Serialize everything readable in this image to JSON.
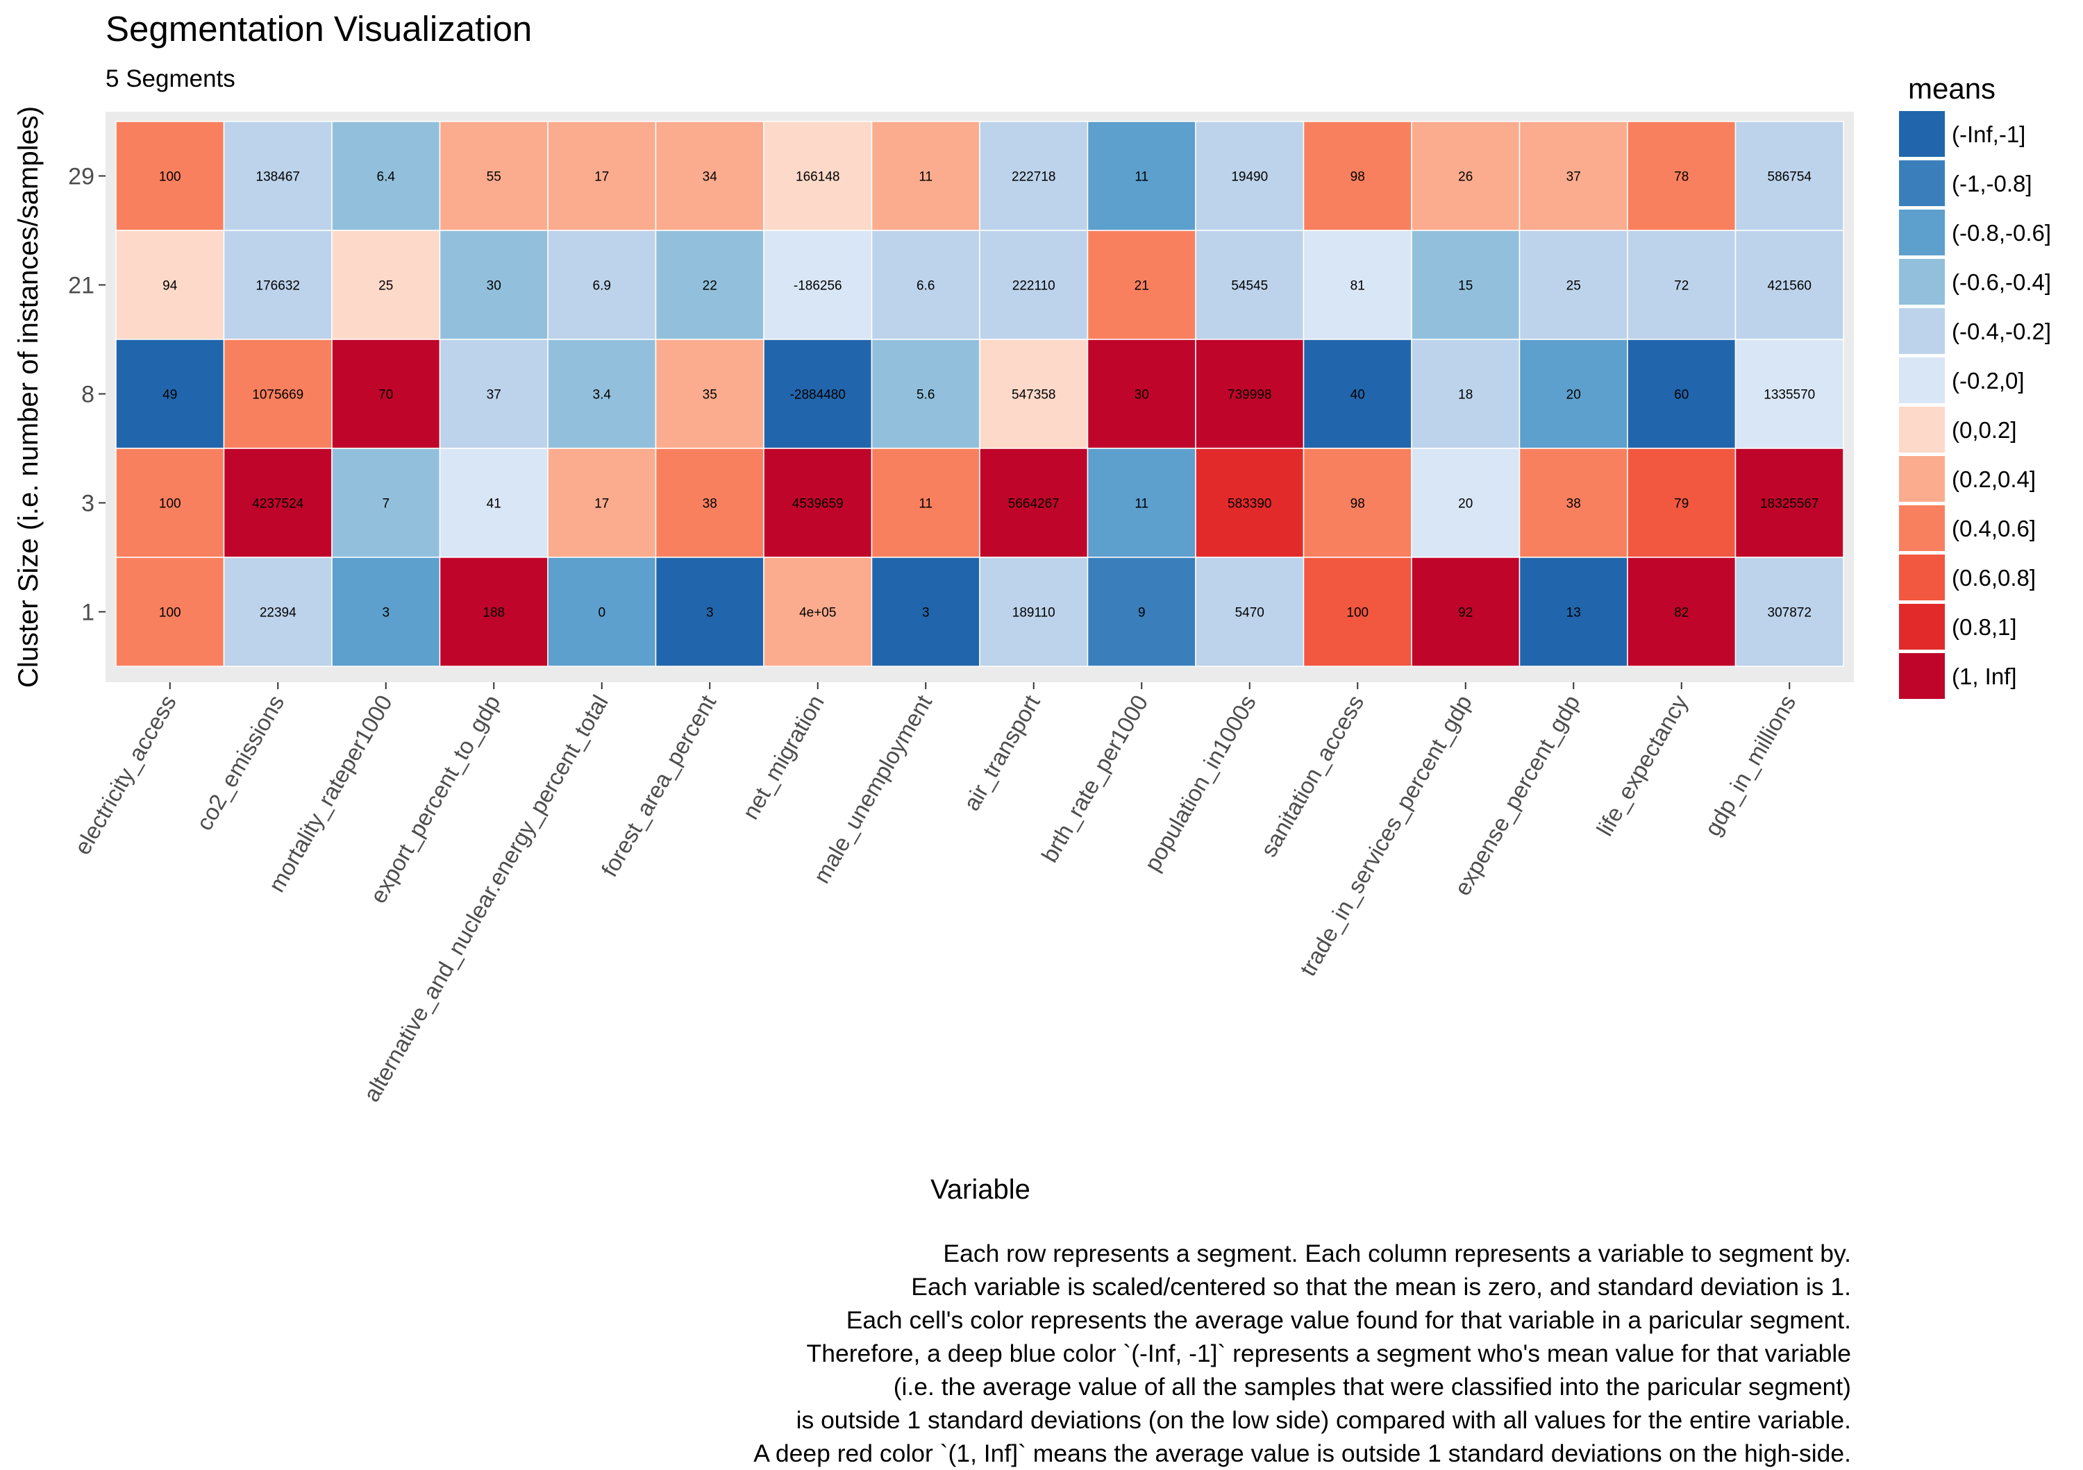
{
  "chart_data": {
    "type": "heatmap",
    "title": "Segmentation Visualization",
    "subtitle": "5 Segments",
    "xlabel": "Variable",
    "ylabel": "Cluster Size (i.e. number of instances/samples)",
    "legend_title": "means",
    "legend_position": "right",
    "grid": true,
    "categories": [
      "electricity_access",
      "co2_emissions",
      "mortality_rateper1000",
      "export_percent_to_gdp",
      "alternative_and_nuclear.energy_percent_total",
      "forest_area_percent",
      "net_migration",
      "male_unemployment",
      "air_transport",
      "brth_rate_per1000",
      "population_in1000s",
      "sanitation_access",
      "trade_in_services_percent_gdp",
      "expense_percent_gdp",
      "life_expectancy",
      "gdp_in_millions"
    ],
    "rows": [
      "29",
      "21",
      "8",
      "3",
      "1"
    ],
    "legend": [
      {
        "label": "(-Inf,-1]",
        "color": "#2166ac"
      },
      {
        "label": "(-1,-0.8]",
        "color": "#3a7fbc"
      },
      {
        "label": "(-0.8,-0.6]",
        "color": "#5d9fcd"
      },
      {
        "label": "(-0.6,-0.4]",
        "color": "#92c0dc"
      },
      {
        "label": "(-0.4,-0.2]",
        "color": "#bdd3eb"
      },
      {
        "label": "(-0.2,0]",
        "color": "#d9e6f5"
      },
      {
        "label": "(0,0.2]",
        "color": "#fcd9c9"
      },
      {
        "label": "(0.2,0.4]",
        "color": "#fbac8e"
      },
      {
        "label": "(0.4,0.6]",
        "color": "#f9805f"
      },
      {
        "label": "(0.6,0.8]",
        "color": "#f25840"
      },
      {
        "label": "(0.8,1]",
        "color": "#e32a2b"
      },
      {
        "label": "(1, Inf]",
        "color": "#c0052a"
      }
    ],
    "values": [
      [
        "100",
        "138467",
        "6.4",
        "55",
        "17",
        "34",
        "166148",
        "11",
        "222718",
        "11",
        "19490",
        "98",
        "26",
        "37",
        "78",
        "586754"
      ],
      [
        "94",
        "176632",
        "25",
        "30",
        "6.9",
        "22",
        "-186256",
        "6.6",
        "222110",
        "21",
        "54545",
        "81",
        "15",
        "25",
        "72",
        "421560"
      ],
      [
        "49",
        "1075669",
        "70",
        "37",
        "3.4",
        "35",
        "-2884480",
        "5.6",
        "547358",
        "30",
        "739998",
        "40",
        "18",
        "20",
        "60",
        "1335570"
      ],
      [
        "100",
        "4237524",
        "7",
        "41",
        "17",
        "38",
        "4539659",
        "11",
        "5664267",
        "11",
        "583390",
        "98",
        "20",
        "38",
        "79",
        "18325567"
      ],
      [
        "100",
        "22394",
        "3",
        "188",
        "0",
        "3",
        "4e+05",
        "3",
        "189110",
        "9",
        "5470",
        "100",
        "92",
        "13",
        "82",
        "307872"
      ]
    ],
    "bins": [
      [
        8,
        4,
        3,
        7,
        7,
        7,
        6,
        7,
        4,
        2,
        4,
        8,
        7,
        7,
        8,
        4
      ],
      [
        6,
        4,
        6,
        3,
        4,
        3,
        5,
        4,
        4,
        8,
        4,
        5,
        3,
        4,
        4,
        4
      ],
      [
        0,
        8,
        11,
        4,
        3,
        7,
        0,
        3,
        6,
        11,
        11,
        0,
        4,
        2,
        0,
        5
      ],
      [
        8,
        11,
        3,
        5,
        7,
        8,
        11,
        8,
        11,
        2,
        10,
        8,
        5,
        8,
        9,
        11
      ],
      [
        8,
        4,
        2,
        11,
        2,
        0,
        7,
        0,
        4,
        1,
        4,
        9,
        11,
        0,
        11,
        4
      ]
    ]
  },
  "note_lines": [
    "Each row represents a segment. Each column represents a variable to segment by.",
    "Each variable is scaled/centered so that the mean is zero, and standard deviation is 1.",
    "Each cell's color represents the average value found for that variable in a paricular segment.",
    "Therefore, a deep blue color `(-Inf, -1]` represents a segment who's mean value for that variable",
    "(i.e. the average value of all the samples that were classified into the paricular segment)",
    "is outside 1 standard deviations (on the low side) compared with all values for the entire variable.",
    "A deep red color `(1, Inf]` means the average value is outside 1 standard deviations on the high-side."
  ]
}
